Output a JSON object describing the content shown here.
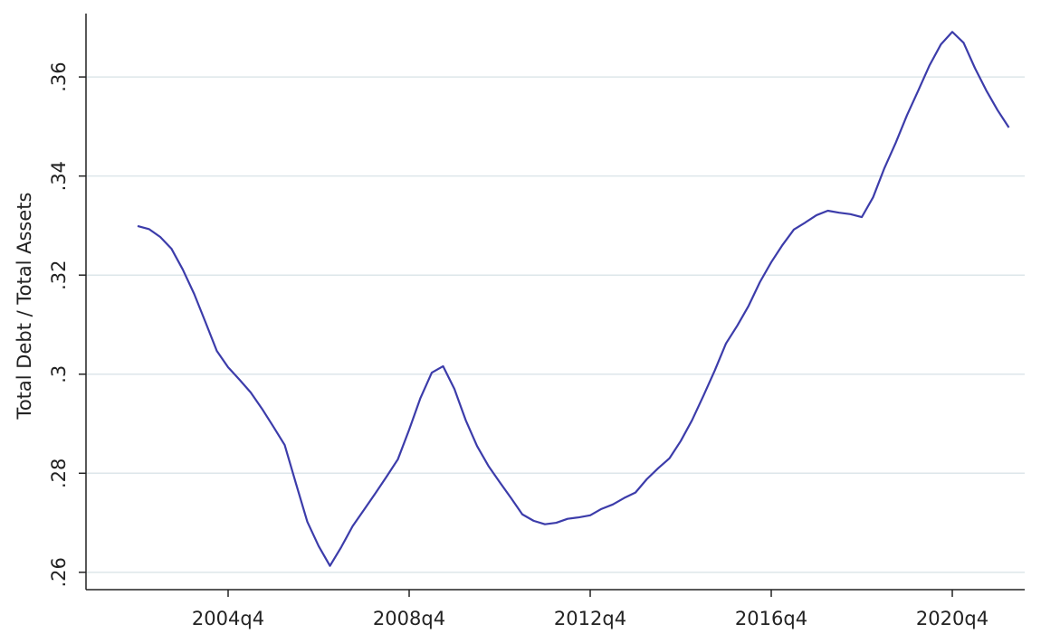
{
  "chart_data": {
    "type": "line",
    "y_label": "Total Debt / Total Assets",
    "x": [
      "2002q4",
      "2003q1",
      "2003q2",
      "2003q3",
      "2003q4",
      "2004q1",
      "2004q2",
      "2004q3",
      "2004q4",
      "2005q1",
      "2005q2",
      "2005q3",
      "2005q4",
      "2006q1",
      "2006q2",
      "2006q3",
      "2006q4",
      "2007q1",
      "2007q2",
      "2007q3",
      "2007q4",
      "2008q1",
      "2008q2",
      "2008q3",
      "2008q4",
      "2009q1",
      "2009q2",
      "2009q3",
      "2009q4",
      "2010q1",
      "2010q2",
      "2010q3",
      "2010q4",
      "2011q1",
      "2011q2",
      "2011q3",
      "2011q4",
      "2012q1",
      "2012q2",
      "2012q3",
      "2012q4",
      "2013q1",
      "2013q2",
      "2013q3",
      "2013q4",
      "2014q1",
      "2014q2",
      "2014q3",
      "2014q4",
      "2015q1",
      "2015q2",
      "2015q3",
      "2015q4",
      "2016q1",
      "2016q2",
      "2016q3",
      "2016q4",
      "2017q1",
      "2017q2",
      "2017q3",
      "2017q4",
      "2018q1",
      "2018q2",
      "2018q3",
      "2018q4",
      "2019q1",
      "2019q2",
      "2019q3",
      "2019q4",
      "2020q1",
      "2020q2",
      "2020q3",
      "2020q4",
      "2021q1",
      "2021q2",
      "2021q3",
      "2021q4",
      "2022q1"
    ],
    "series": [
      {
        "name": "Total Debt / Total Assets",
        "color": "#3c3caa",
        "values": [
          0.3299,
          0.3293,
          0.3277,
          0.3253,
          0.3211,
          0.3162,
          0.3105,
          0.3047,
          0.3014,
          0.2989,
          0.2963,
          0.293,
          0.2894,
          0.2857,
          0.2779,
          0.2702,
          0.2653,
          0.2613,
          0.2651,
          0.2693,
          0.2726,
          0.2759,
          0.2793,
          0.2828,
          0.2888,
          0.2952,
          0.3003,
          0.3016,
          0.297,
          0.2907,
          0.2855,
          0.2815,
          0.2782,
          0.275,
          0.2717,
          0.2704,
          0.2697,
          0.27,
          0.2708,
          0.2711,
          0.2715,
          0.2728,
          0.2737,
          0.275,
          0.2761,
          0.2788,
          0.281,
          0.283,
          0.2865,
          0.2907,
          0.2956,
          0.3007,
          0.3062,
          0.3098,
          0.3138,
          0.3186,
          0.3226,
          0.3261,
          0.3292,
          0.3306,
          0.3321,
          0.333,
          0.3326,
          0.3323,
          0.3317,
          0.3357,
          0.3416,
          0.3467,
          0.3523,
          0.3573,
          0.3624,
          0.3666,
          0.3691,
          0.3669,
          0.3618,
          0.3573,
          0.3533,
          0.3498
        ]
      }
    ],
    "xticks": [
      "2004q4",
      "2008q4",
      "2012q4",
      "2016q4",
      "2020q4"
    ],
    "ylim": [
      0.2565,
      0.3728
    ],
    "yticks": [
      {
        "value": 0.26,
        "label": ".26"
      },
      {
        "value": 0.28,
        "label": ".28"
      },
      {
        "value": 0.3,
        "label": ".3"
      },
      {
        "value": 0.32,
        "label": ".32"
      },
      {
        "value": 0.34,
        "label": ".34"
      },
      {
        "value": 0.36,
        "label": ".36"
      }
    ],
    "grid": true
  }
}
